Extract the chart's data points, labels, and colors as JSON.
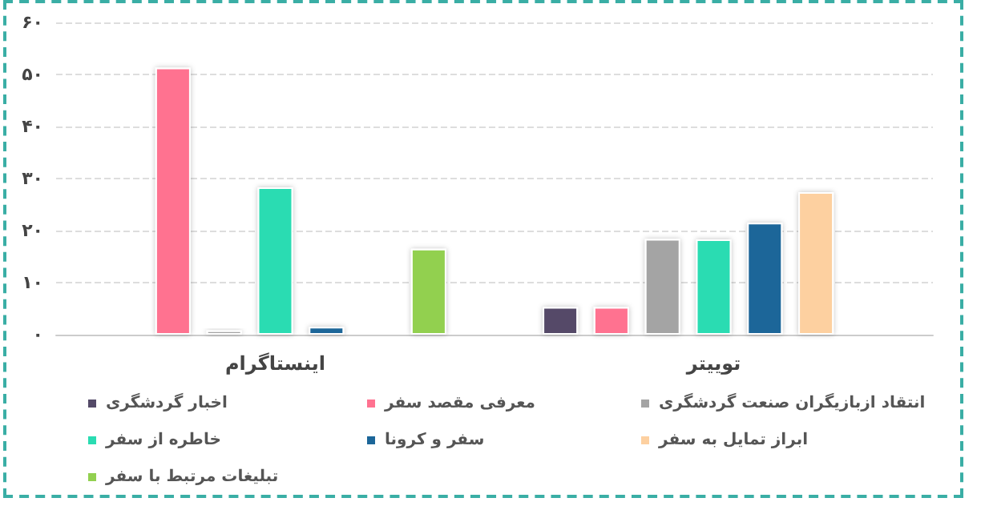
{
  "chart_data": {
    "type": "bar",
    "categories": [
      "اینستاگرام",
      "توییتر"
    ],
    "series": [
      {
        "name": "اخبار گردشگری",
        "color": "#544a68",
        "values": [
          null,
          5.3
        ]
      },
      {
        "name": "معرفی مقصد سفر",
        "color": "#ff7290",
        "values": [
          51.3,
          5.3
        ]
      },
      {
        "name": "انتقاد ازبازیگران صنعت گردشگری",
        "color": "#a4a4a4",
        "values": [
          0.8,
          18.4
        ]
      },
      {
        "name": "خاطره از سفر",
        "color": "#2adcb2",
        "values": [
          28.3,
          18.3
        ]
      },
      {
        "name": "سفر و کرونا",
        "color": "#1c6699",
        "values": [
          1.5,
          21.5
        ]
      },
      {
        "name": "ابراز تمایل به سفر",
        "color": "#fdd0a0",
        "values": [
          null,
          27.4
        ]
      },
      {
        "name": "تبلیغات مرتبط با سفر",
        "color": "#92d050",
        "values": [
          16.5,
          null
        ]
      }
    ],
    "ylim": [
      0,
      60
    ],
    "yticks": [
      {
        "value": 0,
        "label": "۰"
      },
      {
        "value": 10,
        "label": "۱۰"
      },
      {
        "value": 20,
        "label": "۲۰"
      },
      {
        "value": 30,
        "label": "۳۰"
      },
      {
        "value": 40,
        "label": "۴۰"
      },
      {
        "value": 50,
        "label": "۵۰"
      },
      {
        "value": 60,
        "label": "۶۰"
      }
    ],
    "grid": "y",
    "legend": "bottom"
  }
}
